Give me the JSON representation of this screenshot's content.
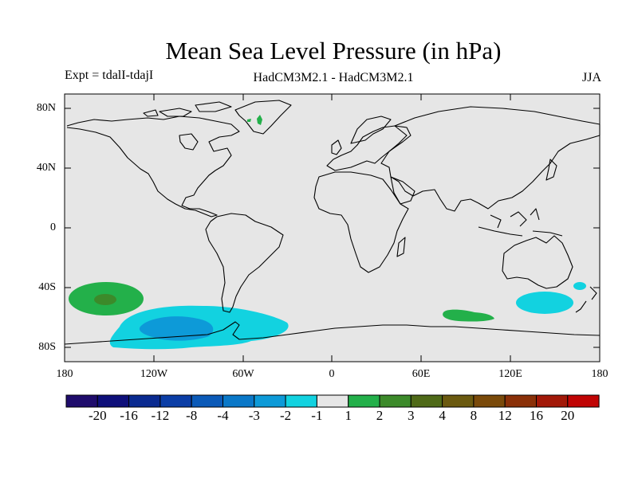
{
  "header": {
    "title": "Mean Sea Level Pressure (in hPa)",
    "experiment": "Expt = tdalI-tdajI",
    "models": "HadCM3M2.1 - HadCM3M2.1",
    "season": "JJA"
  },
  "map": {
    "ocean_color": "#e6e6e6",
    "coast_color": "#000000",
    "lat_ticks": [
      "80N",
      "40N",
      "0",
      "40S",
      "80S"
    ],
    "lon_ticks": [
      "180",
      "120W",
      "60W",
      "0",
      "60E",
      "120E",
      "180"
    ]
  },
  "colorbar": {
    "colors": [
      "#1f0c6c",
      "#0e0f7a",
      "#0a2a90",
      "#0b3ea6",
      "#0b5ab8",
      "#0a78c8",
      "#0d9ad8",
      "#12d2e0",
      "#e6e6e6",
      "#23b04a",
      "#3c8a2a",
      "#4f6a18",
      "#6b5a10",
      "#7a4a0a",
      "#8a3008",
      "#a21808",
      "#c00404"
    ],
    "labels": [
      "-20",
      "-16",
      "-12",
      "-8",
      "-4",
      "-3",
      "-2",
      "-1",
      "1",
      "2",
      "3",
      "4",
      "8",
      "12",
      "16",
      "20"
    ]
  }
}
